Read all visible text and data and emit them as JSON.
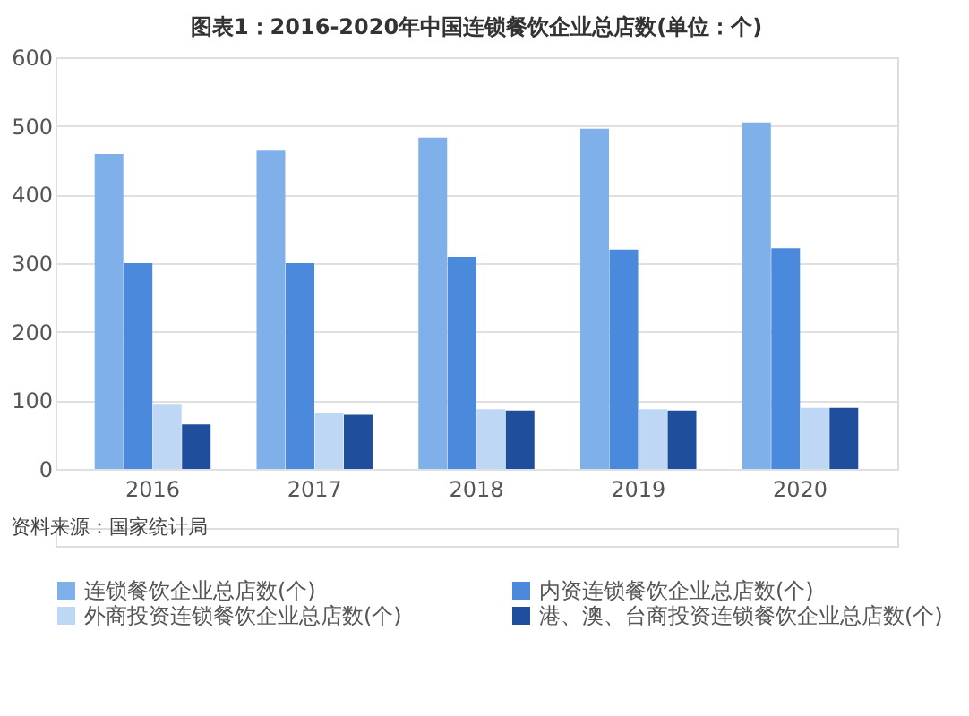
{
  "chart_data": {
    "type": "bar",
    "title": "图表1：2016-2020年中国连锁餐饮企业总店数(单位：个)",
    "categories": [
      "2016",
      "2017",
      "2018",
      "2019",
      "2020"
    ],
    "series": [
      {
        "name": "连锁餐饮企业总店数(个)",
        "color": "#7fb0ea",
        "values": [
          459,
          464,
          483,
          496,
          505
        ]
      },
      {
        "name": "内资连锁餐饮企业总店数(个)",
        "color": "#4a89dc",
        "values": [
          300,
          300,
          309,
          320,
          322
        ]
      },
      {
        "name": "外商投资连锁餐饮企业总店数(个)",
        "color": "#bdd7f5",
        "values": [
          95,
          81,
          87,
          87,
          89
        ]
      },
      {
        "name": "港、澳、台商投资连锁餐饮企业总店数(个)",
        "color": "#1f4e9c",
        "values": [
          65,
          79,
          85,
          85,
          89
        ]
      }
    ],
    "ylim": [
      0,
      600
    ],
    "yticks": [
      0,
      100,
      200,
      300,
      400,
      500,
      600
    ],
    "grid": "y",
    "legend": "bottom",
    "annotations": [
      "资料来源：国家统计局"
    ]
  }
}
